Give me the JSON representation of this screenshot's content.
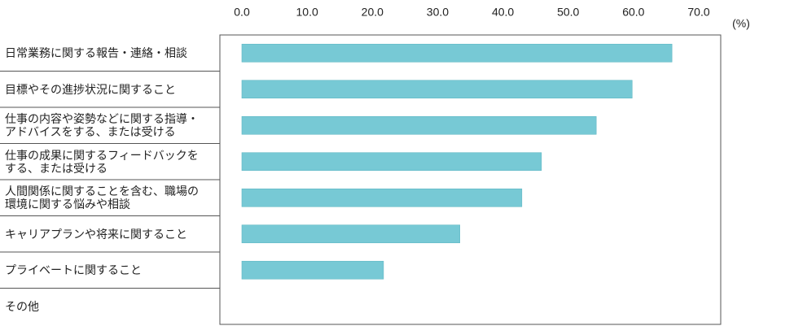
{
  "chart_data": {
    "type": "bar",
    "orientation": "horizontal",
    "unit_label": "(%)",
    "categories": [
      "日常業務に関する報告・連絡・相談",
      "目標やその進捗状況に関すること",
      "仕事の内容や姿勢などに関する指導・\nアドバイスをする、または受ける",
      "仕事の成果に関するフィードバックを\nする、または受ける",
      "人間関係に関することを含む、職場の\n環境に関する悩みや相談",
      "キャリアプランや将来に関すること",
      "プライベートに関すること",
      "その他"
    ],
    "values": [
      65.9,
      59.8,
      54.3,
      45.9,
      42.9,
      33.4,
      21.7,
      null
    ],
    "color": "#77c9d5",
    "xlim": [
      0,
      70
    ],
    "xticks": [
      {
        "value": 0,
        "label": "0.0"
      },
      {
        "value": 10,
        "label": "10.0"
      },
      {
        "value": 20,
        "label": "20.0"
      },
      {
        "value": 30,
        "label": "30.0"
      },
      {
        "value": 40,
        "label": "40.0"
      },
      {
        "value": 50,
        "label": "50.0"
      },
      {
        "value": 60,
        "label": "60.0"
      },
      {
        "value": 70,
        "label": "70.0"
      }
    ],
    "grid": false
  }
}
